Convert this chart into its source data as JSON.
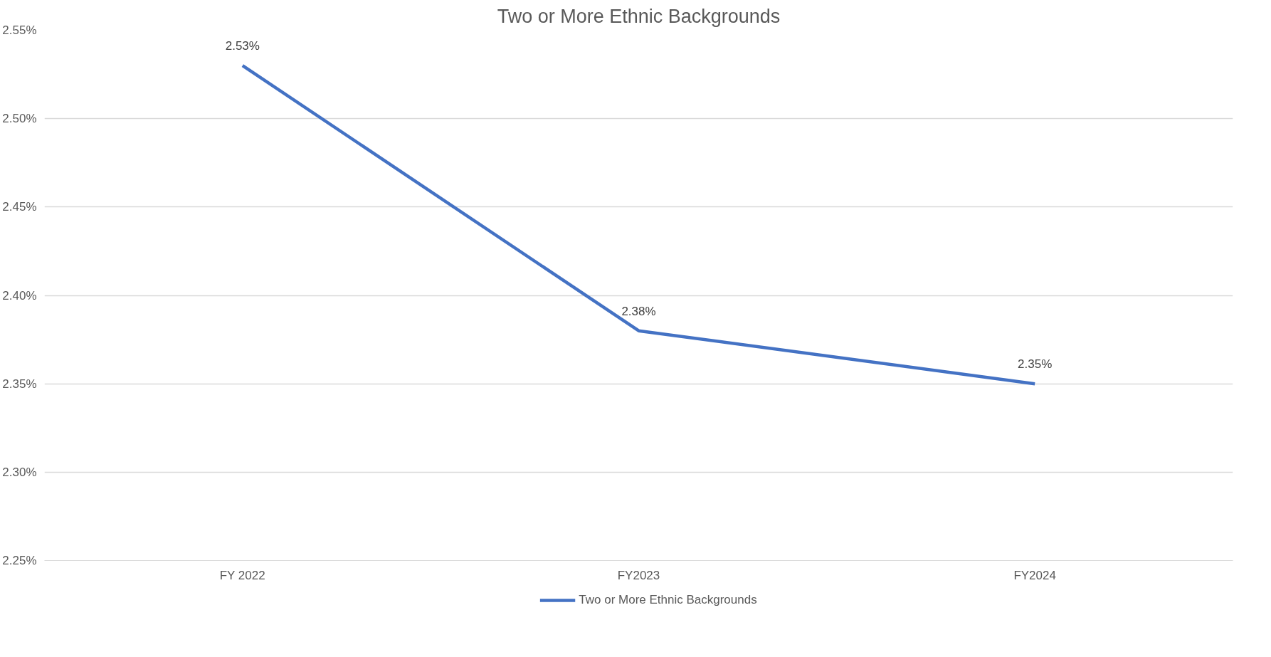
{
  "chart_data": {
    "type": "line",
    "title": "Two or More Ethnic Backgrounds",
    "categories": [
      "FY 2022",
      "FY2023",
      "FY2024"
    ],
    "series": [
      {
        "name": "Two or More Ethnic Backgrounds",
        "color": "#4472c4",
        "values": [
          2.53,
          2.38,
          2.35
        ],
        "value_labels": [
          "2.53%",
          "2.38%",
          "2.35%"
        ]
      }
    ],
    "ylim": [
      2.25,
      2.55
    ],
    "yticks": [
      {
        "value": 2.25,
        "label": "2.25%"
      },
      {
        "value": 2.3,
        "label": "2.30%"
      },
      {
        "value": 2.35,
        "label": "2.35%"
      },
      {
        "value": 2.4,
        "label": "2.40%"
      },
      {
        "value": 2.45,
        "label": "2.45%"
      },
      {
        "value": 2.5,
        "label": "2.50%"
      },
      {
        "value": 2.55,
        "label": "2.55%"
      }
    ],
    "grid": "y",
    "legend": "bottom",
    "marker": "none",
    "line_style": "solid"
  }
}
